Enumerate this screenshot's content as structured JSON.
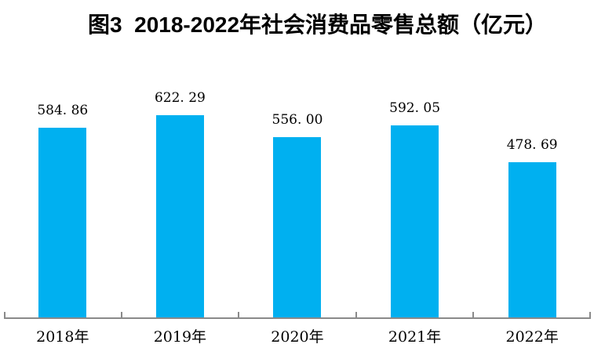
{
  "title": "图3  2018-2022年社会消费品零售总额（亿元）",
  "chart_data": {
    "type": "bar",
    "title": "图3  2018-2022年社会消费品零售总额（亿元）",
    "categories": [
      "2018年",
      "2019年",
      "2020年",
      "2021年",
      "2022年"
    ],
    "values": [
      584.86,
      622.29,
      556.0,
      592.05,
      478.69
    ],
    "value_labels": [
      "584. 86",
      "622. 29",
      "556. 00",
      "592. 05",
      "478. 69"
    ],
    "series_name": "社会消费品零售总额",
    "unit": "亿元",
    "xlabel": "",
    "ylabel": "",
    "ylim": [
      0,
      650
    ],
    "grid": false,
    "legend": false,
    "data_labels_position": "above-bars",
    "bar_color": "#00B0F0",
    "axis_color": "#8a8a8a",
    "text_color": "#000000",
    "background_color": "#ffffff"
  }
}
